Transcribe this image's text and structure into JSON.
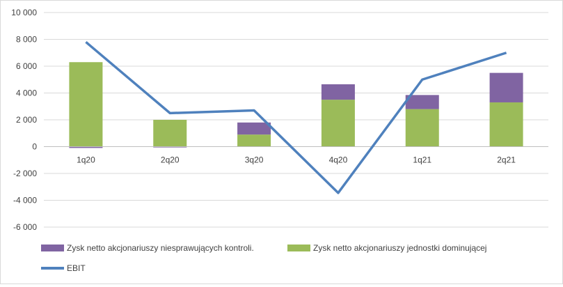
{
  "chart_data": {
    "type": "bar",
    "stacked": true,
    "categories": [
      "1q20",
      "2q20",
      "3q20",
      "4q20",
      "1q21",
      "2q21"
    ],
    "series": [
      {
        "name": "Zysk netto akcjonariuszy jednostki dominującej",
        "kind": "bar",
        "color": "#9bbb59",
        "values": [
          6300,
          2000,
          900,
          3500,
          2800,
          3300
        ]
      },
      {
        "name": "Zysk netto akcjonariuszy niesprawujących kontroli.",
        "kind": "bar",
        "color": "#8064a2",
        "values": [
          -100,
          -60,
          900,
          1150,
          1050,
          2200
        ]
      },
      {
        "name": "EBIT",
        "kind": "line",
        "color": "#4f81bd",
        "values": [
          7800,
          2500,
          2700,
          -3450,
          5000,
          7000
        ]
      }
    ],
    "ylim": [
      -6000,
      10000
    ],
    "yticks": [
      -6000,
      -4000,
      -2000,
      0,
      2000,
      4000,
      6000,
      8000,
      10000
    ],
    "ytick_labels": [
      "-6 000",
      "-4 000",
      "-2 000",
      "0",
      "2 000",
      "4 000",
      "6 000",
      "8 000",
      "10 000"
    ],
    "grid": true,
    "legend_position": "bottom",
    "title": "",
    "xlabel": "",
    "ylabel": ""
  }
}
